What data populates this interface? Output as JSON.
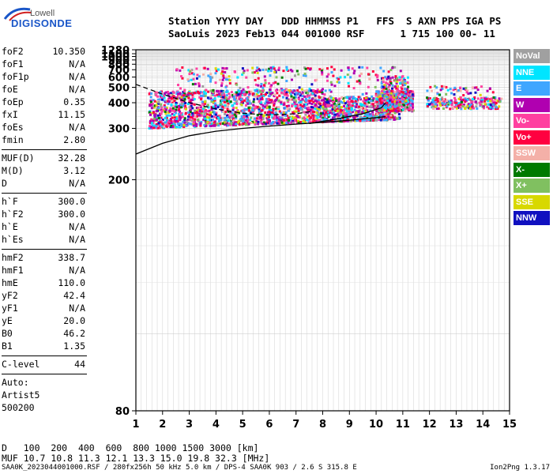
{
  "logo": {
    "top": "Lowell",
    "main": "DIGISONDE"
  },
  "header": {
    "line1": "Station YYYY DAY   DDD HHMMSS P1   FFS  S AXN PPS IGA PS",
    "line2": "SaoLuis 2023 Feb13 044 001000 RSF      1 715 100 00- 11"
  },
  "parameters_group1": [
    {
      "key": "foF2",
      "value": "10.350"
    },
    {
      "key": "foF1",
      "value": "N/A"
    },
    {
      "key": "foF1p",
      "value": "N/A"
    },
    {
      "key": "foE",
      "value": "N/A"
    },
    {
      "key": "foEp",
      "value": "0.35"
    },
    {
      "key": "fxI",
      "value": "11.15"
    },
    {
      "key": "foEs",
      "value": "N/A"
    },
    {
      "key": "fmin",
      "value": "2.80"
    }
  ],
  "parameters_group2": [
    {
      "key": "MUF(D)",
      "value": "32.28"
    },
    {
      "key": "M(D)",
      "value": "3.12"
    },
    {
      "key": "D",
      "value": "N/A"
    }
  ],
  "parameters_group3": [
    {
      "key": "h`F",
      "value": "300.0"
    },
    {
      "key": "h`F2",
      "value": "300.0"
    },
    {
      "key": "h`E",
      "value": "N/A"
    },
    {
      "key": "h`Es",
      "value": "N/A"
    }
  ],
  "parameters_group4": [
    {
      "key": "hmF2",
      "value": "338.7"
    },
    {
      "key": "hmF1",
      "value": "N/A"
    },
    {
      "key": "hmE",
      "value": "110.0"
    },
    {
      "key": "yF2",
      "value": "42.4"
    },
    {
      "key": "yF1",
      "value": "N/A"
    },
    {
      "key": "yE",
      "value": "20.0"
    },
    {
      "key": "B0",
      "value": "46.2"
    },
    {
      "key": "B1",
      "value": "1.35"
    }
  ],
  "c_level": {
    "key": "C-level",
    "value": "44"
  },
  "auto": [
    "Auto:",
    "Artist5",
    "500200"
  ],
  "legend": [
    {
      "label": "NoVal",
      "color": "#a0a0a0"
    },
    {
      "label": "NNE",
      "color": "#00e5ff"
    },
    {
      "label": "E",
      "color": "#3fa6ff"
    },
    {
      "label": "W",
      "color": "#b000b0"
    },
    {
      "label": "Vo-",
      "color": "#ff40a0"
    },
    {
      "label": "Vo+",
      "color": "#ff0040"
    },
    {
      "label": "SSW",
      "color": "#f4b0a8"
    },
    {
      "label": "X-",
      "color": "#007a00"
    },
    {
      "label": "X+",
      "color": "#80c060"
    },
    {
      "label": "SSE",
      "color": "#d8d800"
    },
    {
      "label": "NNW",
      "color": "#1010c0"
    }
  ],
  "chart_data": {
    "type": "scatter",
    "xlim": [
      1,
      15
    ],
    "ylim": [
      80,
      1280
    ],
    "x_ticks": [
      "1",
      "2",
      "3",
      "4",
      "5",
      "6",
      "7",
      "8",
      "9",
      "10",
      "11",
      "12",
      "13",
      "14",
      "15"
    ],
    "y_ticks": [
      "1280",
      "1100",
      "1000",
      "900",
      "800",
      "700",
      "600",
      "500",
      "400",
      "300",
      "200",
      "80"
    ],
    "y_scale": "reciprocal",
    "grid": true,
    "profile_curves": [
      {
        "name": "",
        "style": "solid",
        "points": [
          [
            1,
            240
          ],
          [
            2,
            262
          ],
          [
            3,
            280
          ],
          [
            4,
            292
          ],
          [
            5,
            300
          ],
          [
            6,
            307
          ],
          [
            7,
            313
          ],
          [
            8,
            319
          ],
          [
            9,
            326
          ],
          [
            10,
            335
          ],
          [
            10.35,
            339
          ]
        ]
      },
      {
        "name": "",
        "style": "dashed",
        "points": [
          [
            1,
            525
          ],
          [
            2,
            450
          ],
          [
            3,
            400
          ],
          [
            4,
            370
          ],
          [
            5,
            352
          ],
          [
            6,
            345
          ],
          [
            7,
            350
          ],
          [
            7.6,
            360
          ]
        ]
      },
      {
        "name": "",
        "style": "solid",
        "points": [
          [
            7.5,
            315
          ],
          [
            8.5,
            330
          ],
          [
            9.5,
            350
          ],
          [
            10.2,
            375
          ],
          [
            10.35,
            400
          ]
        ]
      }
    ]
  },
  "bottom": {
    "d_row_label": "D",
    "d_values": "100  200  400  600  800 1000 1500 3000 [km]",
    "muf_row_label": "MUF",
    "muf_values": "10.7 10.8 11.3 12.1 13.3 15.0 19.8 32.3 [MHz]"
  },
  "footer": {
    "left": "SAA0K_2023044001000.RSF / 280fx256h 50 kHz 5.0 km / DPS-4 SAA0K 903 / 2.6 S 315.8 E",
    "right": "Ion2Png 1.3.17"
  }
}
